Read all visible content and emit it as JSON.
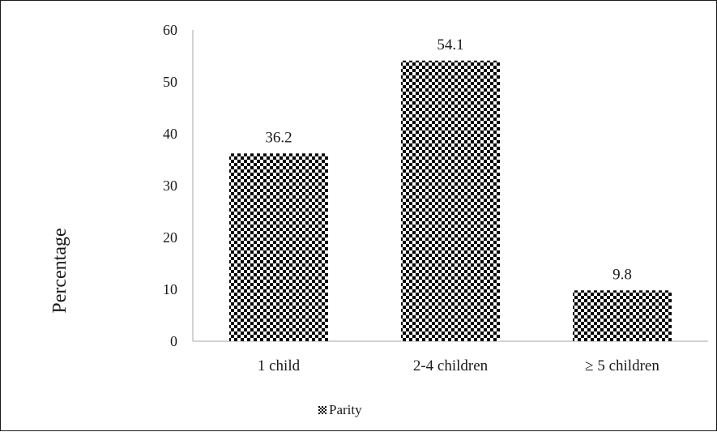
{
  "chart_data": {
    "type": "bar",
    "title": "",
    "xlabel": "",
    "ylabel": "Percentage",
    "ylim": [
      0,
      60
    ],
    "yticks": [
      0,
      10,
      20,
      30,
      40,
      50,
      60
    ],
    "categories": [
      "1 child",
      "2-4 children",
      "≥ 5 children"
    ],
    "series": [
      {
        "name": "Parity",
        "values": [
          36.2,
          54.1,
          9.8
        ]
      }
    ],
    "data_labels": [
      "36.2",
      "54.1",
      "9.8"
    ],
    "legend": {
      "position": "bottom",
      "entries": [
        "Parity"
      ]
    },
    "grid": false,
    "bar_pattern": "checkerboard",
    "colors": {
      "bar": "#000000",
      "axis": "#a6a6a6",
      "text": "#1a1a1a"
    }
  }
}
